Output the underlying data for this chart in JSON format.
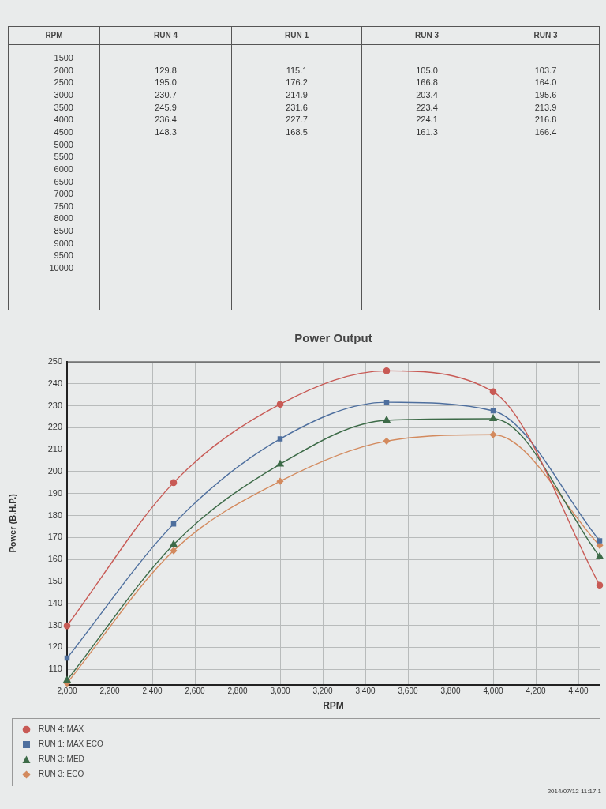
{
  "chart_data": [
    {
      "type": "heatmap",
      "ylabel": "RPM",
      "categories": [
        "RUN 4",
        "RUN 1",
        "RUN 3",
        "RUN 3"
      ],
      "y_categories": [
        "1500",
        "2000",
        "2500",
        "3000",
        "3500",
        "4000",
        "4500",
        "5000",
        "5500",
        "6000",
        "6500",
        "7000",
        "7500",
        "8000",
        "8500",
        "9000",
        "9500",
        "10000"
      ],
      "cells": [
        [
          null,
          null,
          null,
          null
        ],
        [
          129.8,
          115.1,
          105.0,
          103.7
        ],
        [
          195.0,
          176.2,
          166.8,
          164.0
        ],
        [
          230.7,
          214.9,
          203.4,
          195.6
        ],
        [
          245.9,
          231.6,
          223.4,
          213.9
        ],
        [
          236.4,
          227.7,
          224.1,
          216.8
        ],
        [
          148.3,
          168.5,
          161.3,
          166.4
        ],
        [
          null,
          null,
          null,
          null
        ],
        [
          null,
          null,
          null,
          null
        ],
        [
          null,
          null,
          null,
          null
        ],
        [
          null,
          null,
          null,
          null
        ],
        [
          null,
          null,
          null,
          null
        ],
        [
          null,
          null,
          null,
          null
        ],
        [
          null,
          null,
          null,
          null
        ],
        [
          null,
          null,
          null,
          null
        ],
        [
          null,
          null,
          null,
          null
        ],
        [
          null,
          null,
          null,
          null
        ],
        [
          null,
          null,
          null,
          null
        ]
      ],
      "cell_labels": [
        [
          null,
          null,
          null,
          null
        ],
        [
          "129.8",
          "115.1",
          "105.0",
          "103.7"
        ],
        [
          "195.0",
          "176.2",
          "166.8",
          "164.0"
        ],
        [
          "230.7",
          "214.9",
          "203.4",
          "195.6"
        ],
        [
          "245.9",
          "231.6",
          "223.4",
          "213.9"
        ],
        [
          "236.4",
          "227.7",
          "224.1",
          "216.8"
        ],
        [
          "148.3",
          "168.5",
          "161.3",
          "166.4"
        ],
        [
          null,
          null,
          null,
          null
        ],
        [
          null,
          null,
          null,
          null
        ],
        [
          null,
          null,
          null,
          null
        ],
        [
          null,
          null,
          null,
          null
        ],
        [
          null,
          null,
          null,
          null
        ],
        [
          null,
          null,
          null,
          null
        ],
        [
          null,
          null,
          null,
          null
        ],
        [
          null,
          null,
          null,
          null
        ],
        [
          null,
          null,
          null,
          null
        ],
        [
          null,
          null,
          null,
          null
        ],
        [
          null,
          null,
          null,
          null
        ]
      ]
    },
    {
      "type": "line",
      "title": "Power Output",
      "xlabel": "RPM",
      "ylabel": "Power (B.H.P.)",
      "x": [
        2000,
        2500,
        3000,
        3500,
        4000,
        4500
      ],
      "series": [
        {
          "name": "RUN 4: MAX",
          "color": "#c85a55",
          "marker": "circle",
          "values": [
            129.8,
            195.0,
            230.7,
            245.9,
            236.4,
            148.3
          ]
        },
        {
          "name": "RUN 1: MAX ECO",
          "color": "#4e6f9e",
          "marker": "square",
          "values": [
            115.1,
            176.2,
            214.9,
            231.6,
            227.7,
            168.5
          ]
        },
        {
          "name": "RUN 3: MED",
          "color": "#3d6b48",
          "marker": "triangle",
          "values": [
            105.0,
            166.8,
            203.4,
            223.4,
            224.1,
            161.3
          ]
        },
        {
          "name": "RUN 3: ECO",
          "color": "#d38a5e",
          "marker": "diamond",
          "values": [
            103.7,
            164.0,
            195.6,
            213.9,
            216.8,
            166.4
          ]
        }
      ],
      "xlim": [
        2000,
        4500
      ],
      "xticks": [
        {
          "value": 2000,
          "label": "2,000"
        },
        {
          "value": 2200,
          "label": "2,200"
        },
        {
          "value": 2400,
          "label": "2,400"
        },
        {
          "value": 2600,
          "label": "2,600"
        },
        {
          "value": 2800,
          "label": "2,800"
        },
        {
          "value": 3000,
          "label": "3,000"
        },
        {
          "value": 3200,
          "label": "3,200"
        },
        {
          "value": 3400,
          "label": "3,400"
        },
        {
          "value": 3600,
          "label": "3,600"
        },
        {
          "value": 3800,
          "label": "3,800"
        },
        {
          "value": 4000,
          "label": "4,000"
        },
        {
          "value": 4200,
          "label": "4,200"
        },
        {
          "value": 4400,
          "label": "4,400"
        }
      ],
      "ylim": [
        103,
        250
      ],
      "yticks": [
        110,
        120,
        130,
        140,
        150,
        160,
        170,
        180,
        190,
        200,
        210,
        220,
        230,
        240,
        250
      ],
      "grid": true,
      "legend": "bottom left",
      "annotations": [
        "2014/07/12 11:17:1"
      ]
    }
  ]
}
